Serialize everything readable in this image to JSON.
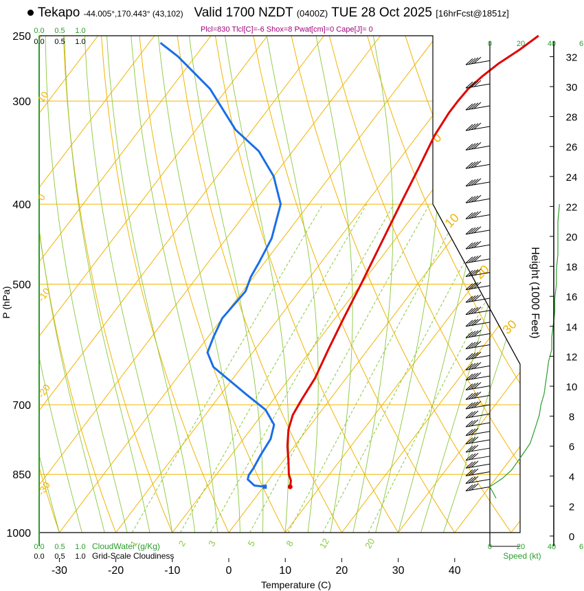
{
  "header": {
    "station": "Tekapo",
    "coords": "-44.005°,170.443° (43,102)",
    "valid": "Valid 1700 NZDT",
    "utc": "(0400Z)",
    "date": "TUE 28 Oct 2025",
    "forecast": "[16hrFcst@1851z]"
  },
  "indices": "Plcl=830 Tlcl[C]=-6 Shox=8 Pwat[cm]=0 Cape[J]= 0",
  "colors": {
    "temperature": "#e00000",
    "dewpoint": "#1a6ee8",
    "isotherm": "#f0b400",
    "dry_adiabat": "#f0b400",
    "moist_adiabat": "#88c83a",
    "mixing_ratio": "#88c83a",
    "cloud_axis": "#2a9d2a",
    "indices": "#a0007a"
  },
  "chart_data": {
    "type": "line",
    "title": "Valid 1700 NZDT (0400Z) TUE 28 Oct 2025",
    "xlabel": "Temperature (C)",
    "ylabel": "P (hPa)",
    "y2label": "Height (1000 Feet)",
    "speed_label": "Speed (kt)",
    "x_ticks": [
      "-30",
      "-20",
      "-10",
      "0",
      "10",
      "20",
      "30",
      "40"
    ],
    "pressure_ticks": [
      "250",
      "300",
      "400",
      "500",
      "700",
      "850",
      "1000"
    ],
    "pressure_values": [
      250,
      300,
      400,
      500,
      700,
      850,
      1000
    ],
    "height_ticks": [
      "0",
      "2",
      "4",
      "6",
      "8",
      "10",
      "12",
      "14",
      "16",
      "18",
      "20",
      "22",
      "24",
      "26",
      "28",
      "30",
      "32"
    ],
    "speed_ticks": [
      "0",
      "20",
      "40"
    ],
    "cloud_ticks": [
      "0.0",
      "0.5",
      "1.0"
    ],
    "cloudwater_label": "CloudWater (g/Kg)",
    "cloudiness_label": "Grid-Scale Cloudiness",
    "top_right_ticks": [
      "0",
      "20",
      "40",
      "6"
    ],
    "mixing_ratio_labels": [
      "1",
      "2",
      "3",
      "5",
      "8",
      "12",
      "20"
    ],
    "mixing_ratio_values": [
      1,
      2,
      3,
      5,
      8,
      12,
      20
    ],
    "isotherm_labels": [
      "10",
      "0",
      "-10",
      "-20",
      "-30"
    ],
    "theta_labels": [
      "0",
      "10",
      "20",
      "30"
    ],
    "series": [
      {
        "name": "Temperature",
        "points": [
          [
            4.7,
            880
          ],
          [
            4.0,
            865
          ],
          [
            2.8,
            850
          ],
          [
            1.0,
            820
          ],
          [
            -1.3,
            785
          ],
          [
            -3.3,
            750
          ],
          [
            -4.5,
            720
          ],
          [
            -5.0,
            690
          ],
          [
            -5.5,
            650
          ],
          [
            -7.0,
            600
          ],
          [
            -8.5,
            550
          ],
          [
            -10.0,
            500
          ],
          [
            -11.8,
            450
          ],
          [
            -13.8,
            400
          ],
          [
            -15.5,
            360
          ],
          [
            -17.0,
            330
          ],
          [
            -17.5,
            310
          ],
          [
            -17.5,
            300
          ],
          [
            -17.3,
            290
          ],
          [
            -16.5,
            280
          ],
          [
            -15.3,
            270
          ],
          [
            -13.5,
            260
          ],
          [
            -12.0,
            250
          ]
        ]
      },
      {
        "name": "Dewpoint",
        "points": [
          [
            0.2,
            880
          ],
          [
            -1.8,
            877
          ],
          [
            -3.8,
            862
          ],
          [
            -4.2,
            852
          ],
          [
            -4.3,
            835
          ],
          [
            -4.8,
            805
          ],
          [
            -5.2,
            770
          ],
          [
            -6.5,
            740
          ],
          [
            -10.0,
            710
          ],
          [
            -15.5,
            680
          ],
          [
            -25.0,
            630
          ],
          [
            -28.0,
            605
          ],
          [
            -29.0,
            580
          ],
          [
            -30.0,
            550
          ],
          [
            -29.5,
            510
          ],
          [
            -30.5,
            490
          ],
          [
            -31.0,
            470
          ],
          [
            -32.0,
            440
          ],
          [
            -35.0,
            400
          ],
          [
            -40.0,
            370
          ],
          [
            -46.0,
            345
          ],
          [
            -53.0,
            325
          ],
          [
            -63.0,
            290
          ],
          [
            -73.0,
            265
          ],
          [
            -78.0,
            255
          ]
        ]
      }
    ],
    "parcel": {
      "temperature_c": 4.7,
      "dewpoint_c": 0.2,
      "pressure_hpa": 880
    },
    "wind_profile_kt": [
      [
        880,
        0
      ],
      [
        860,
        8
      ],
      [
        840,
        14
      ],
      [
        820,
        18
      ],
      [
        800,
        22
      ],
      [
        780,
        26
      ],
      [
        760,
        28
      ],
      [
        740,
        30
      ],
      [
        720,
        32
      ],
      [
        700,
        33
      ],
      [
        680,
        35
      ],
      [
        660,
        36
      ],
      [
        640,
        37
      ],
      [
        620,
        38
      ],
      [
        600,
        40
      ],
      [
        580,
        40
      ],
      [
        560,
        41
      ],
      [
        540,
        42
      ],
      [
        520,
        42
      ],
      [
        500,
        43
      ],
      [
        480,
        43
      ],
      [
        460,
        44
      ],
      [
        440,
        44
      ],
      [
        420,
        44
      ],
      [
        400,
        45
      ]
    ]
  }
}
